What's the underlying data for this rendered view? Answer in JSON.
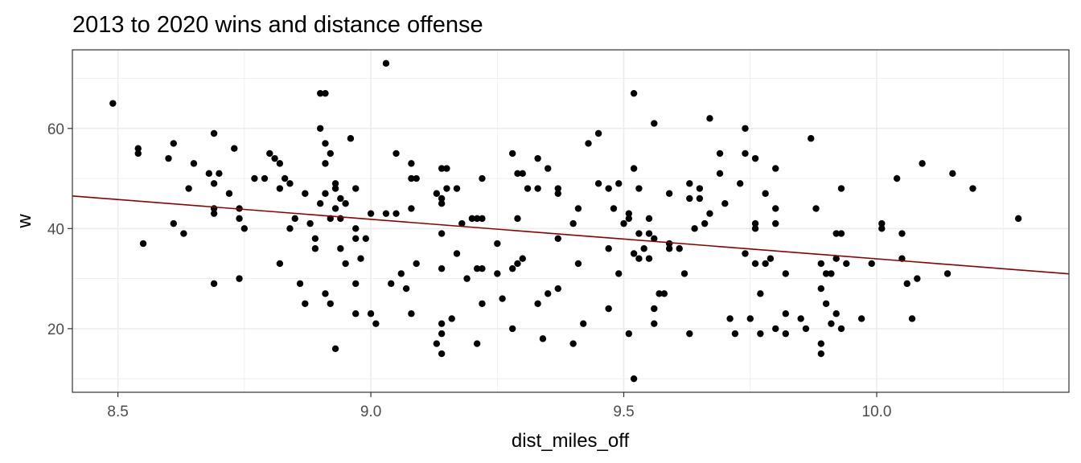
{
  "chart_data": {
    "type": "scatter",
    "title": "2013 to 2020 wins and distance offense",
    "xlabel": "dist_miles_off",
    "ylabel": "w",
    "xlim": [
      8.41,
      10.38
    ],
    "ylim": [
      7.3,
      75.7
    ],
    "x_ticks": [
      8.5,
      9.0,
      9.5,
      10.0
    ],
    "x_tick_labels": [
      "8.5",
      "9.0",
      "9.5",
      "10.0"
    ],
    "y_ticks": [
      20,
      40,
      60
    ],
    "y_tick_labels": [
      "20",
      "40",
      "60"
    ],
    "grid": true,
    "legend": "none",
    "colors": {
      "points": "#000000",
      "trend": "#8b0000",
      "grid": "#ebebeb",
      "panel_border": "#333333"
    },
    "trend_line": {
      "intercept": 112.95,
      "slope": -7.9
    },
    "points": [
      [
        8.49,
        65
      ],
      [
        8.54,
        56
      ],
      [
        8.54,
        55
      ],
      [
        8.55,
        37
      ],
      [
        8.6,
        54
      ],
      [
        8.61,
        57
      ],
      [
        8.61,
        41
      ],
      [
        8.63,
        39
      ],
      [
        8.64,
        48
      ],
      [
        8.65,
        53
      ],
      [
        8.68,
        51
      ],
      [
        8.69,
        59
      ],
      [
        8.69,
        49
      ],
      [
        8.69,
        44
      ],
      [
        8.69,
        43
      ],
      [
        8.69,
        29
      ],
      [
        8.7,
        51
      ],
      [
        8.72,
        47
      ],
      [
        8.73,
        56
      ],
      [
        8.74,
        44
      ],
      [
        8.74,
        42
      ],
      [
        8.74,
        30
      ],
      [
        8.75,
        40
      ],
      [
        8.77,
        50
      ],
      [
        8.79,
        50
      ],
      [
        8.8,
        55
      ],
      [
        8.81,
        54
      ],
      [
        8.82,
        53
      ],
      [
        8.82,
        48
      ],
      [
        8.82,
        33
      ],
      [
        8.83,
        50
      ],
      [
        8.84,
        49
      ],
      [
        8.84,
        40
      ],
      [
        8.85,
        42
      ],
      [
        8.86,
        29
      ],
      [
        8.87,
        47
      ],
      [
        8.87,
        25
      ],
      [
        8.88,
        41
      ],
      [
        8.89,
        38
      ],
      [
        8.89,
        36
      ],
      [
        8.9,
        67
      ],
      [
        8.9,
        60
      ],
      [
        8.9,
        45
      ],
      [
        8.91,
        67
      ],
      [
        8.91,
        57
      ],
      [
        8.91,
        53
      ],
      [
        8.91,
        47
      ],
      [
        8.91,
        27
      ],
      [
        8.92,
        55
      ],
      [
        8.92,
        42
      ],
      [
        8.92,
        25
      ],
      [
        8.93,
        49
      ],
      [
        8.93,
        48
      ],
      [
        8.93,
        44
      ],
      [
        8.93,
        16
      ],
      [
        8.94,
        46
      ],
      [
        8.94,
        42
      ],
      [
        8.94,
        36
      ],
      [
        8.95,
        45
      ],
      [
        8.95,
        33
      ],
      [
        8.96,
        58
      ],
      [
        8.97,
        48
      ],
      [
        8.97,
        40
      ],
      [
        8.97,
        38
      ],
      [
        8.97,
        29
      ],
      [
        8.97,
        23
      ],
      [
        8.98,
        34
      ],
      [
        8.99,
        38
      ],
      [
        9.0,
        43
      ],
      [
        9.0,
        23
      ],
      [
        9.01,
        21
      ],
      [
        9.03,
        73
      ],
      [
        9.03,
        43
      ],
      [
        9.04,
        29
      ],
      [
        9.05,
        55
      ],
      [
        9.05,
        43
      ],
      [
        9.06,
        31
      ],
      [
        9.07,
        28
      ],
      [
        9.08,
        53
      ],
      [
        9.08,
        50
      ],
      [
        9.08,
        44
      ],
      [
        9.08,
        23
      ],
      [
        9.09,
        50
      ],
      [
        9.09,
        33
      ],
      [
        9.13,
        47
      ],
      [
        9.13,
        17
      ],
      [
        9.14,
        52
      ],
      [
        9.14,
        46
      ],
      [
        9.14,
        45
      ],
      [
        9.14,
        39
      ],
      [
        9.14,
        32
      ],
      [
        9.14,
        21
      ],
      [
        9.14,
        19
      ],
      [
        9.14,
        15
      ],
      [
        9.15,
        52
      ],
      [
        9.15,
        48
      ],
      [
        9.16,
        22
      ],
      [
        9.17,
        48
      ],
      [
        9.17,
        35
      ],
      [
        9.18,
        41
      ],
      [
        9.19,
        30
      ],
      [
        9.2,
        42
      ],
      [
        9.21,
        42
      ],
      [
        9.21,
        32
      ],
      [
        9.21,
        17
      ],
      [
        9.22,
        50
      ],
      [
        9.22,
        42
      ],
      [
        9.22,
        32
      ],
      [
        9.22,
        25
      ],
      [
        9.25,
        37
      ],
      [
        9.25,
        31
      ],
      [
        9.26,
        26
      ],
      [
        9.28,
        55
      ],
      [
        9.28,
        32
      ],
      [
        9.28,
        20
      ],
      [
        9.29,
        51
      ],
      [
        9.29,
        42
      ],
      [
        9.29,
        33
      ],
      [
        9.3,
        51
      ],
      [
        9.3,
        34
      ],
      [
        9.31,
        48
      ],
      [
        9.33,
        54
      ],
      [
        9.33,
        48
      ],
      [
        9.33,
        25
      ],
      [
        9.34,
        18
      ],
      [
        9.35,
        52
      ],
      [
        9.35,
        27
      ],
      [
        9.37,
        48
      ],
      [
        9.37,
        47
      ],
      [
        9.37,
        38
      ],
      [
        9.37,
        28
      ],
      [
        9.4,
        41
      ],
      [
        9.4,
        17
      ],
      [
        9.41,
        44
      ],
      [
        9.41,
        33
      ],
      [
        9.42,
        21
      ],
      [
        9.43,
        57
      ],
      [
        9.45,
        59
      ],
      [
        9.45,
        49
      ],
      [
        9.47,
        48
      ],
      [
        9.47,
        36
      ],
      [
        9.47,
        24
      ],
      [
        9.48,
        44
      ],
      [
        9.49,
        49
      ],
      [
        9.49,
        31
      ],
      [
        9.5,
        41
      ],
      [
        9.51,
        43
      ],
      [
        9.51,
        42
      ],
      [
        9.51,
        19
      ],
      [
        9.52,
        67
      ],
      [
        9.52,
        52
      ],
      [
        9.52,
        35
      ],
      [
        9.52,
        10
      ],
      [
        9.53,
        48
      ],
      [
        9.53,
        39
      ],
      [
        9.53,
        34
      ],
      [
        9.54,
        36
      ],
      [
        9.55,
        42
      ],
      [
        9.55,
        39
      ],
      [
        9.55,
        34
      ],
      [
        9.56,
        61
      ],
      [
        9.56,
        38
      ],
      [
        9.56,
        24
      ],
      [
        9.56,
        21
      ],
      [
        9.57,
        27
      ],
      [
        9.58,
        27
      ],
      [
        9.59,
        47
      ],
      [
        9.59,
        37
      ],
      [
        9.59,
        36
      ],
      [
        9.61,
        36
      ],
      [
        9.62,
        31
      ],
      [
        9.63,
        49
      ],
      [
        9.63,
        46
      ],
      [
        9.63,
        19
      ],
      [
        9.64,
        40
      ],
      [
        9.65,
        48
      ],
      [
        9.65,
        46
      ],
      [
        9.66,
        41
      ],
      [
        9.67,
        62
      ],
      [
        9.67,
        43
      ],
      [
        9.69,
        55
      ],
      [
        9.69,
        51
      ],
      [
        9.7,
        45
      ],
      [
        9.71,
        22
      ],
      [
        9.72,
        19
      ],
      [
        9.73,
        49
      ],
      [
        9.74,
        60
      ],
      [
        9.74,
        55
      ],
      [
        9.74,
        35
      ],
      [
        9.75,
        22
      ],
      [
        9.76,
        54
      ],
      [
        9.76,
        41
      ],
      [
        9.76,
        40
      ],
      [
        9.76,
        33
      ],
      [
        9.77,
        27
      ],
      [
        9.77,
        19
      ],
      [
        9.78,
        47
      ],
      [
        9.78,
        33
      ],
      [
        9.79,
        34
      ],
      [
        9.8,
        52
      ],
      [
        9.8,
        44
      ],
      [
        9.8,
        41
      ],
      [
        9.8,
        20
      ],
      [
        9.82,
        31
      ],
      [
        9.82,
        23
      ],
      [
        9.82,
        19
      ],
      [
        9.85,
        22
      ],
      [
        9.86,
        20
      ],
      [
        9.87,
        58
      ],
      [
        9.88,
        44
      ],
      [
        9.89,
        33
      ],
      [
        9.89,
        28
      ],
      [
        9.89,
        17
      ],
      [
        9.89,
        15
      ],
      [
        9.9,
        31
      ],
      [
        9.9,
        25
      ],
      [
        9.91,
        31
      ],
      [
        9.91,
        21
      ],
      [
        9.92,
        39
      ],
      [
        9.92,
        34
      ],
      [
        9.92,
        23
      ],
      [
        9.93,
        48
      ],
      [
        9.93,
        39
      ],
      [
        9.93,
        20
      ],
      [
        9.94,
        33
      ],
      [
        9.97,
        22
      ],
      [
        9.99,
        33
      ],
      [
        10.01,
        41
      ],
      [
        10.01,
        40
      ],
      [
        10.04,
        50
      ],
      [
        10.05,
        39
      ],
      [
        10.05,
        34
      ],
      [
        10.06,
        29
      ],
      [
        10.07,
        22
      ],
      [
        10.08,
        30
      ],
      [
        10.09,
        53
      ],
      [
        10.14,
        31
      ],
      [
        10.15,
        51
      ],
      [
        10.19,
        48
      ],
      [
        10.28,
        42
      ]
    ]
  }
}
